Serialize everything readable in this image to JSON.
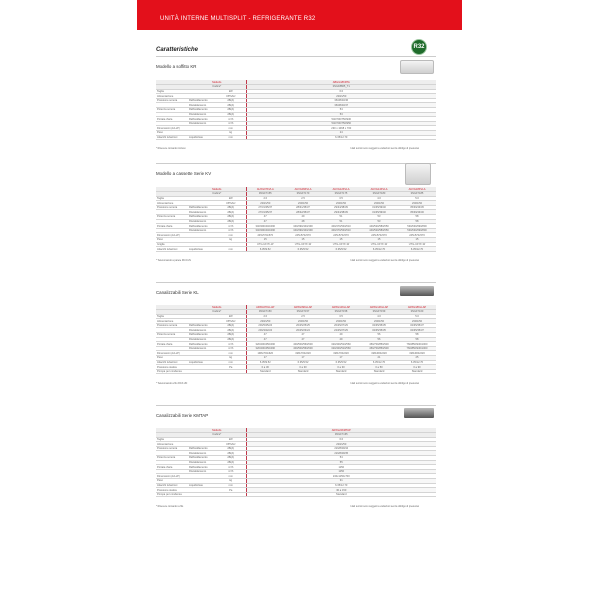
{
  "header": {
    "title": "UNITÀ INTERNE MULTISPLIT - REFRIGERANTE R32"
  },
  "heading": "Caratteristiche",
  "badge": "R32",
  "colors": {
    "accent": "#e3101b"
  },
  "row_labels": {
    "model": "Modello",
    "code": "Codice*"
  },
  "disclaimer": "I dati tecnici sono soggetti a variazioni senza obbligo di preavviso",
  "sections": [
    {
      "title": "Modello a soffitto KR",
      "models": [
        "ABGG18KRTA"
      ],
      "codes": [
        "3NGF8865_T1"
      ],
      "rows": [
        [
          "Taglia",
          "",
          "kW",
          [
            "6.0"
          ]
        ],
        [
          "Alimentazione",
          "",
          "V/Ph/Hz",
          [
            "230/1/50"
          ]
        ],
        [
          "Pressione sonora",
          "Raffreddamento",
          "dB(A)",
          [
            "36/38/43/46"
          ]
        ],
        [
          "",
          "Riscaldamento",
          "dB(A)",
          [
            "36/38/43/47"
          ]
        ],
        [
          "Potenza sonora",
          "Raffreddamento",
          "dB(A)",
          [
            "54"
          ]
        ],
        [
          "",
          "Riscaldamento",
          "dB(A)",
          [
            "53"
          ]
        ],
        [
          "Portata d'aria",
          "Raffreddamento",
          "m³/h",
          [
            "540/700/750/930"
          ]
        ],
        [
          "",
          "Riscaldamento",
          "m³/h",
          [
            "540/700/750/950"
          ]
        ],
        [
          "Dimensioni (AxLxP)",
          "",
          "mm",
          [
            "230 x 1068 x 700"
          ]
        ],
        [
          "Peso",
          "",
          "kg",
          [
            "24"
          ]
        ],
        [
          "Attacchi tubazioni",
          "Liquido/Gas",
          "mm",
          [
            "6.35/12.70"
          ]
        ]
      ],
      "footnote": "* Ricevere comando incluso"
    },
    {
      "title": "Modello a cassette Serie KV",
      "models": [
        "AUXG07KVLA",
        "AUXG09KVLA",
        "AUXG12KVLA",
        "AUXG14KVLA",
        "AUXG18KVLA"
      ],
      "codes": [
        "3NGF7155",
        "3NGF7170",
        "3NGF7175",
        "3NGF7180",
        "3NGF7185"
      ],
      "rows": [
        [
          "Taglia",
          "",
          "kW",
          [
            "2.0",
            "2.5",
            "3.5",
            "4.0",
            "5.0"
          ]
        ],
        [
          "Alimentazione",
          "",
          "V/Ph/Hz",
          [
            "230/1/50",
            "230/1/50",
            "230/1/50",
            "230/1/50",
            "230/1/50"
          ]
        ],
        [
          "Pressione sonora",
          "Raffreddamento",
          "dB(A)",
          [
            "27/31/35/37",
            "28/31/35/37",
            "29/34/38/39",
            "31/35/39/40",
            "35/39/43/45"
          ]
        ],
        [
          "",
          "Riscaldamento",
          "dB(A)",
          [
            "27/31/35/37",
            "28/32/35/37",
            "29/34/38/39",
            "31/35/39/40",
            "35/39/43/46"
          ]
        ],
        [
          "Potenza sonora",
          "Raffreddamento",
          "dB(A)",
          [
            "47",
            "49",
            "51",
            "53",
            "58"
          ]
        ],
        [
          "",
          "Riscaldamento",
          "dB(A)",
          [
            "47",
            "48",
            "51",
            "53",
            "58"
          ]
        ],
        [
          "Portata d'aria",
          "Raffreddamento",
          "m³/h",
          [
            "340/390/440/490",
            "340/390/440/490",
            "400/470/540/610",
            "440/520/580/650",
            "530/630/690/800"
          ]
        ],
        [
          "",
          "Riscaldamento",
          "m³/h",
          [
            "340/390/440/490",
            "340/390/440/490",
            "400/470/540/610",
            "440/520/580/650",
            "530/630/690/800"
          ]
        ],
        [
          "Dimensioni (AxLxP)",
          "",
          "mm",
          [
            "245x570x570",
            "245x570x570",
            "245x570x570",
            "245x570x570",
            "245x570x570"
          ]
        ],
        [
          "Peso",
          "",
          "kg",
          [
            "15",
            "15",
            "15",
            "15",
            "15"
          ]
        ],
        [
          "Griglia",
          "",
          "",
          [
            "UTG-UFYF-W",
            "UTG-UFYF-W",
            "UTG-UFYF-W",
            "UTG-UFYF-W",
            "UTG-UFYF-W"
          ]
        ],
        [
          "Attacchi tubazioni",
          "Liquido/Gas",
          "mm",
          [
            "6.35/9.52",
            "6.35/9.52",
            "6.35/9.52",
            "6.35/12.70",
            "6.35/12.70"
          ]
        ]
      ],
      "footnote": "* Telecomando a parete RC3-UN"
    },
    {
      "title": "Canalizzabili Serie KL",
      "models": [
        "ARXG07KLLAP",
        "ARXG09KLLAP",
        "ARXG12KLLAP",
        "ARXG14KLLAP",
        "ARXG18KLLAP"
      ],
      "codes": [
        "3NGF7150",
        "3NGF7157",
        "3NGF7158",
        "3NGF7159",
        "3NGF7160"
      ],
      "rows": [
        [
          "Taglia",
          "",
          "kW",
          [
            "2.0",
            "2.5",
            "3.5",
            "4.0",
            "5.0"
          ]
        ],
        [
          "Alimentazione",
          "",
          "V/Ph/Hz",
          [
            "230/1/50",
            "230/1/50",
            "230/1/50",
            "230/1/50",
            "230/1/50"
          ]
        ],
        [
          "Pressione sonora",
          "Raffreddamento",
          "dB(A)",
          [
            "20/25/25/24",
            "20/25/25/25",
            "20/25/27/29",
            "32/35/35/35",
            "32/35/35/37"
          ]
        ],
        [
          "",
          "Riscaldamento",
          "dB(A)",
          [
            "20/23/22/24",
            "20/25/23/24",
            "22/25/27/29",
            "32/35/35/35",
            "32/35/35/37"
          ]
        ],
        [
          "Potenza sonora",
          "Raffreddamento",
          "dB(A)",
          [
            "47",
            "47",
            "49",
            "56",
            "58"
          ]
        ],
        [
          "",
          "Riscaldamento",
          "dB(A)",
          [
            "47",
            "47",
            "49",
            "56",
            "58"
          ]
        ],
        [
          "Portata d'aria",
          "Raffreddamento",
          "m³/h",
          [
            "320/400/450/490",
            "400/500/560/630",
            "320/400/510/560",
            "450/700/850/930",
            "760/850/930/1000"
          ]
        ],
        [
          "",
          "Riscaldamento",
          "m³/h",
          [
            "320/400/450/490",
            "400/500/560/630",
            "320/400/510/560",
            "450/700/850/930",
            "760/850/930/1000"
          ]
        ],
        [
          "Dimensioni (AxLxP)",
          "",
          "mm",
          [
            "198x700x620",
            "198x700x620",
            "198x700x620",
            "198x900x620",
            "198x900x620"
          ]
        ],
        [
          "Peso",
          "",
          "kg",
          [
            "17",
            "17",
            "17",
            "21",
            "25"
          ]
        ],
        [
          "Attacchi tubazioni",
          "Liquido/Gas",
          "mm",
          [
            "6.35/9.52",
            "6.35/9.52",
            "6.35/9.52",
            "6.35/12.70",
            "6.35/12.70"
          ]
        ],
        [
          "Pressione statica",
          "",
          "Pa",
          [
            "0 a 30",
            "0 a 30",
            "0 a 30",
            "0 a 50",
            "0 a 90"
          ]
        ],
        [
          "Pompa per condensa",
          "",
          "",
          [
            "Standard",
            "Standard",
            "Standard",
            "Standard",
            "Standard"
          ]
        ]
      ],
      "footnote": "* Telecomando a filo RC3-UN"
    },
    {
      "title": "Canalizzabili Serie KMTAP",
      "models": [
        "ARXG24KMTAP"
      ],
      "codes": [
        "3NGF7165"
      ],
      "rows": [
        [
          "Taglia",
          "",
          "kW",
          [
            "6.0"
          ]
        ],
        [
          "Alimentazione",
          "",
          "V/Ph/Hz",
          [
            "230/1/50"
          ]
        ],
        [
          "Pressione sonora",
          "Raffreddamento",
          "dB(A)",
          [
            "22/28/29/34"
          ]
        ],
        [
          "",
          "Riscaldamento",
          "dB(A)",
          [
            "22/28/29/35"
          ]
        ],
        [
          "Potenza sonora",
          "Raffreddamento",
          "dB(A)",
          [
            "54"
          ]
        ],
        [
          "",
          "Riscaldamento",
          "dB(A)",
          [
            "55"
          ]
        ],
        [
          "Portata d'aria",
          "Raffreddamento",
          "m³/h",
          [
            "1150"
          ]
        ],
        [
          "",
          "Riscaldamento",
          "m³/h",
          [
            "1150"
          ]
        ],
        [
          "Dimensioni (AxLxP)",
          "",
          "mm",
          [
            "240x1150x700"
          ]
        ],
        [
          "Peso",
          "",
          "kg",
          [
            "31"
          ]
        ],
        [
          "Attacchi tubazioni",
          "Liquido/Gas",
          "mm",
          [
            "6.35/12.70"
          ]
        ],
        [
          "Pressione statica",
          "",
          "Pa",
          [
            "30 a 150"
          ]
        ],
        [
          "Pompa per condensa",
          "",
          "",
          [
            "Standard"
          ]
        ]
      ],
      "footnote": "* Ricevere comando a filo"
    }
  ]
}
